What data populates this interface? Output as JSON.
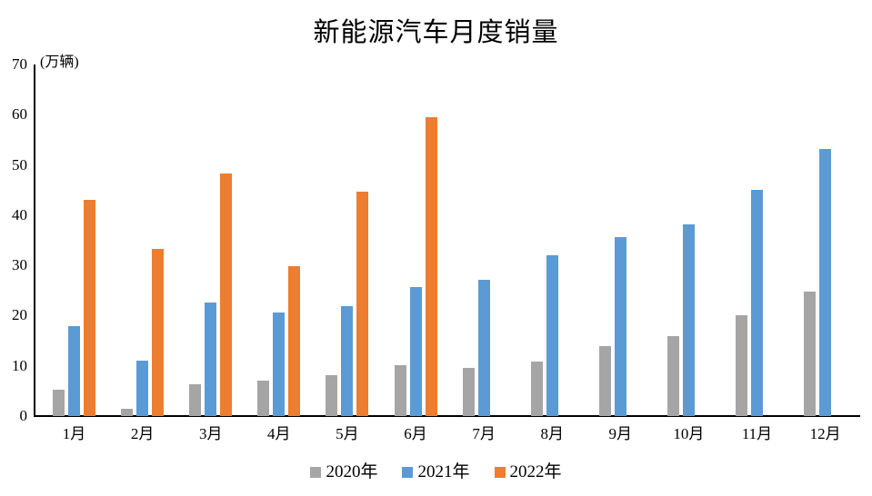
{
  "chart_data": {
    "type": "bar",
    "title": "新能源汽车月度销量",
    "ylabel": "(万辆)",
    "xlabel": "",
    "categories": [
      "1月",
      "2月",
      "3月",
      "4月",
      "5月",
      "6月",
      "7月",
      "8月",
      "9月",
      "10月",
      "11月",
      "12月"
    ],
    "series": [
      {
        "name": "2020年",
        "color": "#A5A5A5",
        "values": [
          5.2,
          1.5,
          6.4,
          7.1,
          8.1,
          10.2,
          9.6,
          10.8,
          14.0,
          16.0,
          20.0,
          24.8
        ]
      },
      {
        "name": "2021年",
        "color": "#5B9BD5",
        "values": [
          17.9,
          11.0,
          22.6,
          20.6,
          21.8,
          25.6,
          27.1,
          32.1,
          35.6,
          38.2,
          45.0,
          53.1
        ]
      },
      {
        "name": "2022年",
        "color": "#ED7D31",
        "values": [
          43.1,
          33.3,
          48.3,
          29.9,
          44.7,
          59.6,
          null,
          null,
          null,
          null,
          null,
          null
        ]
      }
    ],
    "ylim": [
      0,
      70
    ],
    "yticks": [
      0,
      10,
      20,
      30,
      40,
      50,
      60,
      70
    ],
    "grid": false,
    "legend_position": "bottom",
    "axis_color": "#000000",
    "background_color": "#FFFFFF"
  }
}
